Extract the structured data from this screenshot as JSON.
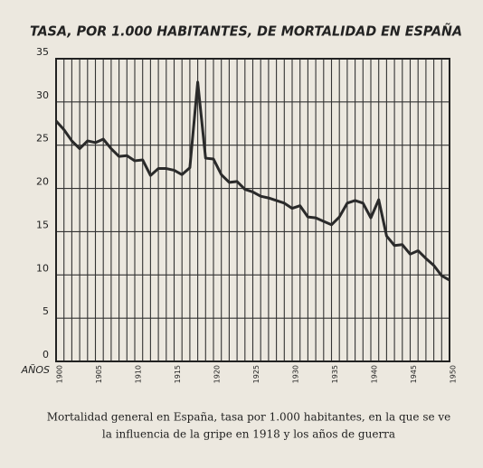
{
  "chart_data": {
    "type": "line",
    "title": "TASA, POR 1.000 HABITANTES, DE MORTALIDAD EN ESPAÑA",
    "x_label": "AÑOS",
    "caption": [
      "Mortalidad general en España, tasa por 1.000 habitantes, en la que se ve",
      "la influencia de la gripe en 1918 y los años de guerra"
    ],
    "x": [
      1900,
      1901,
      1902,
      1903,
      1904,
      1905,
      1906,
      1907,
      1908,
      1909,
      1910,
      1911,
      1912,
      1913,
      1914,
      1915,
      1916,
      1917,
      1918,
      1919,
      1920,
      1921,
      1922,
      1923,
      1924,
      1925,
      1926,
      1927,
      1928,
      1929,
      1930,
      1931,
      1932,
      1933,
      1934,
      1935,
      1936,
      1937,
      1938,
      1939,
      1940,
      1941,
      1942,
      1943,
      1944,
      1945,
      1946,
      1947,
      1948,
      1949,
      1950
    ],
    "series": [
      {
        "color": "#2a2a2a",
        "values": [
          27.8,
          26.8,
          25.5,
          24.6,
          25.5,
          25.3,
          25.7,
          24.6,
          23.7,
          23.8,
          23.2,
          23.3,
          21.5,
          22.3,
          22.3,
          22.1,
          21.6,
          22.4,
          32.3,
          23.5,
          23.4,
          21.6,
          20.7,
          20.8,
          19.9,
          19.6,
          19.1,
          18.9,
          18.6,
          18.3,
          17.7,
          18.0,
          16.7,
          16.6,
          16.2,
          15.8,
          16.7,
          18.3,
          18.6,
          18.3,
          16.6,
          18.7,
          14.5,
          13.4,
          13.5,
          12.4,
          12.8,
          11.9,
          11.1,
          9.9,
          9.4
        ]
      }
    ],
    "xlim": [
      1900,
      1950
    ],
    "xticks": [
      1900,
      1905,
      1910,
      1915,
      1920,
      1925,
      1930,
      1935,
      1940,
      1945,
      1950
    ],
    "ylim": [
      0,
      35
    ],
    "yticks": [
      0,
      5,
      10,
      15,
      20,
      25,
      30,
      35
    ],
    "grid": true
  }
}
